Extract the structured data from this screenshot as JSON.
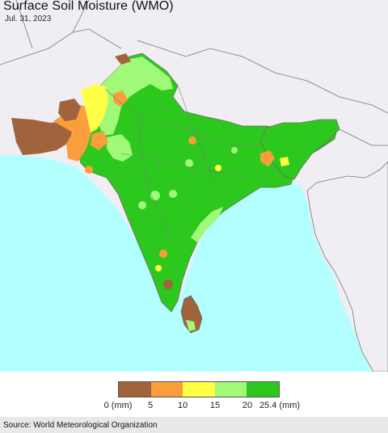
{
  "map": {
    "title": "Surface Soil Moisture (WMO)",
    "date": "Jul. 31, 2023",
    "colors": {
      "ocean": "#b3ffff",
      "outside_region": "#f0eef2",
      "border": "#888888"
    }
  },
  "legend": {
    "unit": "(mm)",
    "classes": [
      {
        "range": "0-5",
        "color": "#a0643c"
      },
      {
        "range": "5-10",
        "color": "#fa9e3c"
      },
      {
        "range": "10-15",
        "color": "#ffff46"
      },
      {
        "range": "15-20",
        "color": "#a0fa78"
      },
      {
        "range": "20-25.4",
        "color": "#2dc81e"
      }
    ],
    "ticks": [
      "0 (mm)",
      "5",
      "10",
      "15",
      "20",
      "25.4 (mm)"
    ]
  },
  "source": "Source: World Meteorological Organization"
}
